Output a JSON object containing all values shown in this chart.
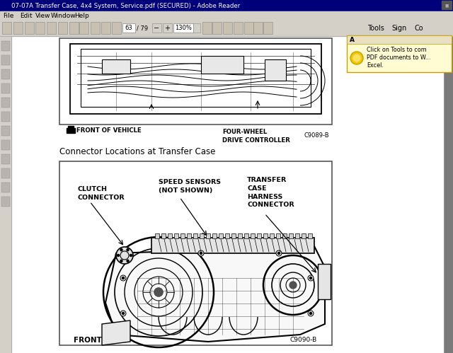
{
  "title_bar": "07-07A Transfer Case, 4x4 System, Service.pdf (SECURED) - Adobe Reader",
  "menu_items": [
    "File",
    "Edit",
    "View",
    "Window",
    "Help"
  ],
  "toolbar_bg": "#d4d0c8",
  "main_bg": "#7a7a7a",
  "page_bg": "#ffffff",
  "title_bar_color": "#00007a",
  "section_title": "Connector Locations at Transfer Case",
  "top_diagram_label1": "FRONT OF VEHICLE",
  "top_diagram_label2": "FOUR-WHEEL\nDRIVE CONTROLLER",
  "top_diagram_code": "C9089-B",
  "bottom_diagram_clutch": "CLUTCH\nCONNECTOR",
  "bottom_diagram_speed": "SPEED SENSORS\n(NOT SHOWN)",
  "bottom_diagram_transfer": "TRANSFER\nCASE\nHARNESS\nCONNECTOR",
  "bottom_diagram_front": "FRONT",
  "bottom_diagram_code": "C9090-B",
  "tooltip_text1": "Click on Tools to com",
  "tooltip_text2": "PDF documents to W...",
  "tooltip_text3": "Excel.",
  "tools_label": "Tools",
  "sign_label": "Sign",
  "co_label": "Co"
}
